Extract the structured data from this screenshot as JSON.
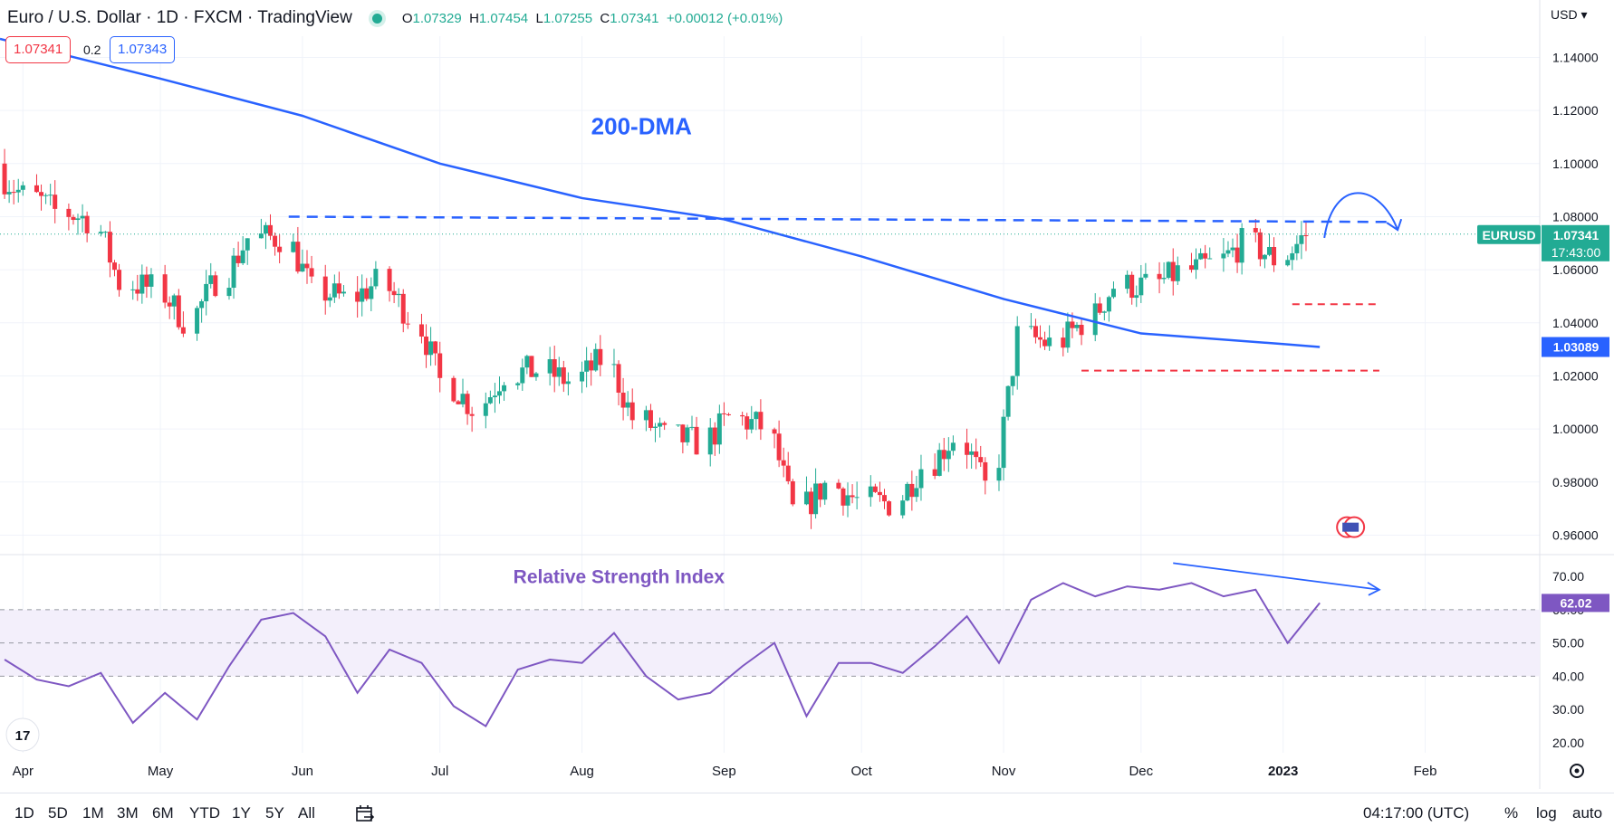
{
  "header": {
    "title": "Euro / U.S. Dollar · 1D · FXCM · TradingView",
    "ohlc": [
      {
        "k": "O",
        "v": "1.07329"
      },
      {
        "k": "H",
        "v": "1.07454"
      },
      {
        "k": "L",
        "v": "1.07255"
      },
      {
        "k": "C",
        "v": "1.07341"
      }
    ],
    "change": "+0.00012 (+0.01%)",
    "bid": "1.07341",
    "spread": "0.2",
    "ask": "1.07343"
  },
  "currency": "USD",
  "price_scale": {
    "tick_labels": [
      "1.14000",
      "1.12000",
      "1.10000",
      "1.08000",
      "1.06000",
      "1.04000",
      "1.02000",
      "1.00000",
      "0.98000",
      "0.96000"
    ],
    "last_symbol": "EURUSD",
    "last_price": "1.07341",
    "countdown": "17:43:00",
    "ma_label": "1.03089"
  },
  "rsi_scale": {
    "tick_labels": [
      "70.00",
      "60.00",
      "50.00",
      "40.00",
      "30.00",
      "20.00"
    ],
    "last": "62.02"
  },
  "time_axis": {
    "labels": [
      {
        "text": "Apr"
      },
      {
        "text": "May"
      },
      {
        "text": "Jun"
      },
      {
        "text": "Jul"
      },
      {
        "text": "Aug"
      },
      {
        "text": "Sep"
      },
      {
        "text": "Oct"
      },
      {
        "text": "Nov"
      },
      {
        "text": "Dec"
      },
      {
        "text": "2023"
      },
      {
        "text": "Feb"
      }
    ]
  },
  "annotations": {
    "ma_label": "200-DMA",
    "rsi_label": "Relative Strength Index"
  },
  "toolbar": {
    "timeframes": [
      "1D",
      "5D",
      "1M",
      "3M",
      "6M",
      "YTD",
      "1Y",
      "5Y",
      "All"
    ],
    "clock": "04:17:00 (UTC)",
    "percent": "%",
    "log": "log",
    "auto": "auto"
  },
  "colors": {
    "up": "#22ab94",
    "down": "#f23645",
    "ma": "#2962ff",
    "rsi": "#7e57c2",
    "rsi_band": "#f3effb"
  },
  "chart_data": [
    {
      "type": "candlestick",
      "symbol": "EURUSD",
      "timeframe": "1D",
      "ylim": [
        0.953,
        1.148
      ],
      "x_range": [
        "2022-03-27",
        "2023-02-26"
      ],
      "series": [
        {
          "name": "EURUSD",
          "anchors": [
            {
              "date": "2022-03-28",
              "close": 1.096
            },
            {
              "date": "2022-04-04",
              "close": 1.088
            },
            {
              "date": "2022-04-11",
              "close": 1.082
            },
            {
              "date": "2022-04-18",
              "close": 1.079
            },
            {
              "date": "2022-04-25",
              "close": 1.055
            },
            {
              "date": "2022-05-02",
              "close": 1.053
            },
            {
              "date": "2022-05-09",
              "close": 1.041
            },
            {
              "date": "2022-05-16",
              "close": 1.056
            },
            {
              "date": "2022-05-23",
              "close": 1.072
            },
            {
              "date": "2022-05-30",
              "close": 1.072
            },
            {
              "date": "2022-06-06",
              "close": 1.052
            },
            {
              "date": "2022-06-13",
              "close": 1.049
            },
            {
              "date": "2022-06-20",
              "close": 1.055
            },
            {
              "date": "2022-06-27",
              "close": 1.043
            },
            {
              "date": "2022-07-04",
              "close": 1.018
            },
            {
              "date": "2022-07-11",
              "close": 1.008
            },
            {
              "date": "2022-07-18",
              "close": 1.021
            },
            {
              "date": "2022-07-25",
              "close": 1.022
            },
            {
              "date": "2022-08-01",
              "close": 1.018
            },
            {
              "date": "2022-08-08",
              "close": 1.026
            },
            {
              "date": "2022-08-15",
              "close": 1.004
            },
            {
              "date": "2022-08-22",
              "close": 0.997
            },
            {
              "date": "2022-08-29",
              "close": 0.995
            },
            {
              "date": "2022-09-05",
              "close": 1.004
            },
            {
              "date": "2022-09-12",
              "close": 1.001
            },
            {
              "date": "2022-09-19",
              "close": 0.969
            },
            {
              "date": "2022-09-26",
              "close": 0.979
            },
            {
              "date": "2022-10-03",
              "close": 0.973
            },
            {
              "date": "2022-10-10",
              "close": 0.972
            },
            {
              "date": "2022-10-17",
              "close": 0.986
            },
            {
              "date": "2022-10-24",
              "close": 0.997
            },
            {
              "date": "2022-10-31",
              "close": 0.978
            },
            {
              "date": "2022-11-07",
              "close": 1.035
            },
            {
              "date": "2022-11-14",
              "close": 1.032
            },
            {
              "date": "2022-11-21",
              "close": 1.04
            },
            {
              "date": "2022-11-28",
              "close": 1.054
            },
            {
              "date": "2022-12-05",
              "close": 1.054
            },
            {
              "date": "2022-12-12",
              "close": 1.059
            },
            {
              "date": "2022-12-19",
              "close": 1.062
            },
            {
              "date": "2022-12-26",
              "close": 1.07
            },
            {
              "date": "2023-01-02",
              "close": 1.064
            },
            {
              "date": "2023-01-09",
              "close": 1.0734
            }
          ]
        },
        {
          "name": "200-DMA",
          "points": [
            {
              "date": "2022-03-27",
              "value": 1.147
            },
            {
              "date": "2022-05-01",
              "value": 1.132
            },
            {
              "date": "2022-06-01",
              "value": 1.118
            },
            {
              "date": "2022-07-01",
              "value": 1.1
            },
            {
              "date": "2022-08-01",
              "value": 1.087
            },
            {
              "date": "2022-09-01",
              "value": 1.079
            },
            {
              "date": "2022-10-01",
              "value": 1.065
            },
            {
              "date": "2022-11-01",
              "value": 1.049
            },
            {
              "date": "2022-12-01",
              "value": 1.036
            },
            {
              "date": "2023-01-01",
              "value": 1.032
            },
            {
              "date": "2023-01-09",
              "value": 1.03089
            }
          ]
        }
      ],
      "resistance_level": 1.079,
      "support_levels": [
        1.047,
        1.022
      ]
    },
    {
      "type": "line",
      "name": "Relative Strength Index",
      "ylim": [
        17,
        76
      ],
      "levels": [
        40,
        50,
        60
      ],
      "points": [
        {
          "date": "2022-03-28",
          "value": 45
        },
        {
          "date": "2022-04-04",
          "value": 39
        },
        {
          "date": "2022-04-11",
          "value": 37
        },
        {
          "date": "2022-04-18",
          "value": 41
        },
        {
          "date": "2022-04-25",
          "value": 26
        },
        {
          "date": "2022-05-02",
          "value": 35
        },
        {
          "date": "2022-05-09",
          "value": 27
        },
        {
          "date": "2022-05-16",
          "value": 43
        },
        {
          "date": "2022-05-23",
          "value": 57
        },
        {
          "date": "2022-05-30",
          "value": 59
        },
        {
          "date": "2022-06-06",
          "value": 52
        },
        {
          "date": "2022-06-13",
          "value": 35
        },
        {
          "date": "2022-06-20",
          "value": 48
        },
        {
          "date": "2022-06-27",
          "value": 44
        },
        {
          "date": "2022-07-04",
          "value": 31
        },
        {
          "date": "2022-07-11",
          "value": 25
        },
        {
          "date": "2022-07-18",
          "value": 42
        },
        {
          "date": "2022-07-25",
          "value": 45
        },
        {
          "date": "2022-08-01",
          "value": 44
        },
        {
          "date": "2022-08-08",
          "value": 53
        },
        {
          "date": "2022-08-15",
          "value": 40
        },
        {
          "date": "2022-08-22",
          "value": 33
        },
        {
          "date": "2022-08-29",
          "value": 35
        },
        {
          "date": "2022-09-05",
          "value": 43
        },
        {
          "date": "2022-09-12",
          "value": 50
        },
        {
          "date": "2022-09-19",
          "value": 28
        },
        {
          "date": "2022-09-26",
          "value": 44
        },
        {
          "date": "2022-10-03",
          "value": 44
        },
        {
          "date": "2022-10-10",
          "value": 41
        },
        {
          "date": "2022-10-17",
          "value": 49
        },
        {
          "date": "2022-10-24",
          "value": 58
        },
        {
          "date": "2022-10-31",
          "value": 44
        },
        {
          "date": "2022-11-07",
          "value": 63
        },
        {
          "date": "2022-11-14",
          "value": 68
        },
        {
          "date": "2022-11-21",
          "value": 64
        },
        {
          "date": "2022-11-28",
          "value": 67
        },
        {
          "date": "2022-12-05",
          "value": 66
        },
        {
          "date": "2022-12-12",
          "value": 68
        },
        {
          "date": "2022-12-19",
          "value": 64
        },
        {
          "date": "2022-12-26",
          "value": 66
        },
        {
          "date": "2023-01-02",
          "value": 50
        },
        {
          "date": "2023-01-09",
          "value": 62.02
        }
      ]
    }
  ]
}
